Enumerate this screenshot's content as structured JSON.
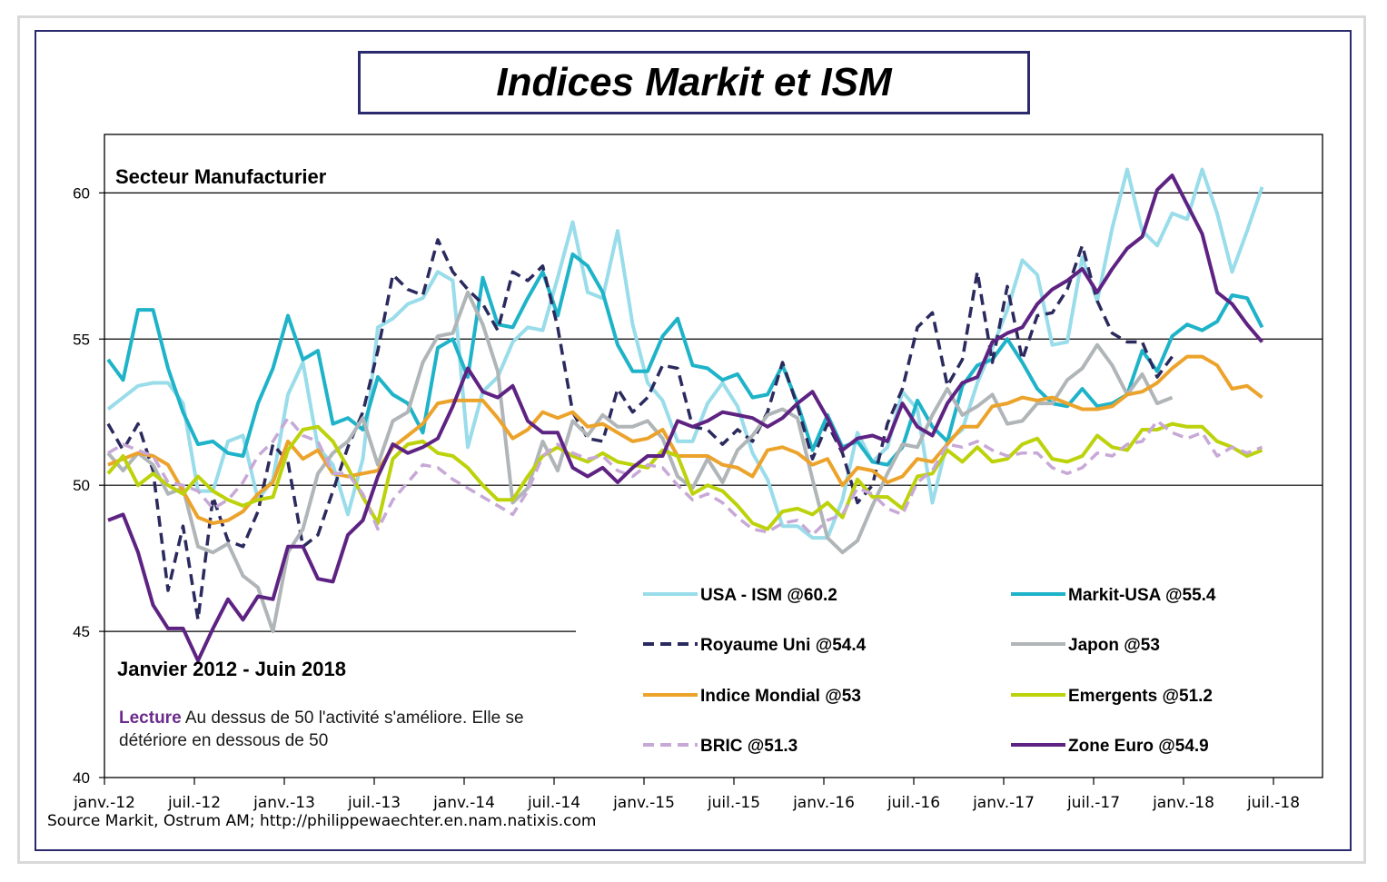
{
  "title": "Indices Markit et ISM",
  "source": "Source Markit, Ostrum AM;  http://philippewaechter.en.nam.natixis.com",
  "chart_data": {
    "type": "line",
    "subtitle": "Secteur  Manufacturier",
    "period": "Janvier 2012 - Juin 2018",
    "note": {
      "lead": "Lecture",
      "line1": " Au dessus de 50 l'activité s'améliore. Elle se",
      "line2": "détériore en dessous de 50"
    },
    "ylim": [
      40,
      62
    ],
    "y_ticks": [
      "40",
      "45",
      "50",
      "55",
      "60"
    ],
    "x_tick_labels": [
      "janv.-12",
      "juil.-12",
      "janv.-13",
      "juil.-13",
      "janv.-14",
      "juil.-14",
      "janv.-15",
      "juil.-15",
      "janv.-16",
      "juil.-16",
      "janv.-17",
      "juil.-17",
      "janv.-18",
      "juil.-18"
    ],
    "x_start": "janv.-12",
    "grid_y": [
      50,
      55,
      60
    ],
    "series": [
      {
        "name": "USA - ISM @60.2",
        "color": "#99dcea",
        "dash": "solid",
        "values": [
          52.6,
          53.0,
          53.4,
          53.5,
          53.5,
          52.8,
          49.8,
          49.8,
          51.5,
          51.7,
          49.5,
          50.2,
          53.1,
          54.2,
          51.3,
          50.7,
          49.0,
          50.9,
          55.4,
          55.7,
          56.2,
          56.4,
          57.3,
          57.0,
          51.3,
          53.2,
          53.7,
          54.9,
          55.4,
          55.3,
          57.1,
          59.0,
          56.6,
          56.4,
          58.7,
          55.5,
          53.5,
          52.9,
          51.5,
          51.5,
          52.8,
          53.5,
          52.7,
          51.1,
          50.2,
          48.6,
          48.6,
          48.2,
          48.2,
          49.5,
          51.8,
          50.8,
          51.3,
          53.2,
          52.6,
          49.4,
          51.5,
          51.9,
          53.5,
          54.7,
          56.0,
          57.7,
          57.2,
          54.8,
          54.9,
          57.8,
          56.3,
          58.8,
          60.8,
          58.7,
          58.2,
          59.3,
          59.1,
          60.8,
          59.3,
          57.3,
          58.7,
          60.2
        ]
      },
      {
        "name": "Markit-USA @55.4",
        "color": "#1eb3c8",
        "dash": "solid",
        "values": [
          54.3,
          53.6,
          56.0,
          56.0,
          54.0,
          52.5,
          51.4,
          51.5,
          51.1,
          51.0,
          52.8,
          54.0,
          55.8,
          54.3,
          54.6,
          52.1,
          52.3,
          51.9,
          53.7,
          53.1,
          52.8,
          51.8,
          54.7,
          55.0,
          53.7,
          57.1,
          55.5,
          55.4,
          56.4,
          57.3,
          55.8,
          57.9,
          57.5,
          56.6,
          54.8,
          53.9,
          53.9,
          55.1,
          55.7,
          54.1,
          54.0,
          53.6,
          53.8,
          53.0,
          53.1,
          54.1,
          52.8,
          51.2,
          52.4,
          51.3,
          51.5,
          50.8,
          50.7,
          51.3,
          52.9,
          52.0,
          51.5,
          53.4,
          54.1,
          54.3,
          55.0,
          54.2,
          53.3,
          52.8,
          52.7,
          53.3,
          52.7,
          52.8,
          53.1,
          54.6,
          53.9,
          55.1,
          55.5,
          55.3,
          55.6,
          56.5,
          56.4,
          55.4
        ]
      },
      {
        "name": "Royaume Uni @54.4",
        "color": "#2b2a5e",
        "dash": "dashed",
        "values": [
          52.1,
          51.2,
          52.1,
          50.5,
          46.4,
          48.6,
          45.4,
          49.6,
          48.1,
          47.9,
          49.1,
          51.4,
          50.8,
          47.9,
          48.3,
          49.8,
          51.3,
          52.5,
          54.6,
          57.2,
          56.7,
          56.5,
          58.4,
          57.3,
          56.7,
          56.2,
          55.3,
          57.3,
          57.0,
          57.5,
          55.4,
          52.5,
          51.6,
          51.5,
          53.3,
          52.5,
          53.0,
          54.1,
          54.0,
          52.0,
          51.9,
          51.4,
          51.9,
          51.5,
          52.5,
          54.2,
          52.7,
          50.9,
          52.1,
          51.1,
          49.4,
          50.0,
          52.1,
          53.3,
          55.4,
          55.9,
          53.4,
          54.3,
          57.3,
          54.2,
          56.8,
          54.3,
          55.8,
          55.9,
          56.7,
          58.2,
          56.3,
          55.2,
          54.9,
          54.9,
          53.7,
          54.4
        ]
      },
      {
        "name": "Japon @53",
        "color": "#b0b5b8",
        "dash": "solid",
        "values": [
          51.1,
          50.5,
          51.1,
          50.7,
          49.7,
          49.9,
          47.9,
          47.7,
          48.0,
          46.9,
          46.5,
          45.0,
          47.7,
          48.5,
          50.4,
          51.1,
          51.5,
          52.3,
          50.7,
          52.2,
          52.5,
          54.2,
          55.1,
          55.2,
          56.6,
          55.5,
          53.9,
          49.4,
          49.9,
          51.5,
          50.5,
          52.2,
          51.7,
          52.4,
          52.0,
          52.0,
          52.2,
          51.6,
          50.3,
          49.9,
          50.9,
          50.1,
          51.2,
          51.7,
          52.4,
          52.6,
          52.3,
          50.2,
          48.2,
          47.7,
          48.1,
          49.3,
          50.4,
          51.4,
          51.3,
          52.4,
          53.3,
          52.4,
          52.7,
          53.1,
          52.1,
          52.2,
          52.8,
          52.8,
          53.6,
          54.0,
          54.8,
          54.1,
          53.1,
          53.8,
          52.8,
          53.0
        ]
      },
      {
        "name": "Indice Mondial @53",
        "color": "#eca32b",
        "dash": "solid",
        "values": [
          50.7,
          50.9,
          51.1,
          51.0,
          50.7,
          49.8,
          48.9,
          48.7,
          48.8,
          49.1,
          49.7,
          50.1,
          51.5,
          50.9,
          51.2,
          50.4,
          50.3,
          50.4,
          50.5,
          51.3,
          51.7,
          52.1,
          52.8,
          52.9,
          52.9,
          52.9,
          52.3,
          51.6,
          51.9,
          52.5,
          52.3,
          52.5,
          52.0,
          52.1,
          51.8,
          51.5,
          51.6,
          51.9,
          51.0,
          51.0,
          51.0,
          50.7,
          50.6,
          50.3,
          51.2,
          51.3,
          51.1,
          50.7,
          50.9,
          50.0,
          50.6,
          50.5,
          50.1,
          50.3,
          50.9,
          50.8,
          51.4,
          52.0,
          52.0,
          52.7,
          52.8,
          53.0,
          52.9,
          53.0,
          52.8,
          52.6,
          52.6,
          52.7,
          53.1,
          53.2,
          53.5,
          54.0,
          54.4,
          54.4,
          54.1,
          53.3,
          53.4,
          53.0
        ]
      },
      {
        "name": "Emergents @51.2",
        "color": "#bcd20a",
        "dash": "solid",
        "values": [
          50.4,
          51.0,
          50.0,
          50.4,
          50.0,
          49.7,
          50.3,
          49.8,
          49.5,
          49.3,
          49.5,
          49.6,
          51.2,
          51.9,
          52.0,
          51.5,
          50.6,
          49.6,
          48.7,
          50.9,
          51.4,
          51.5,
          51.1,
          51.0,
          50.6,
          50.0,
          49.5,
          49.5,
          50.3,
          51.0,
          51.3,
          51.0,
          50.8,
          51.1,
          50.8,
          50.7,
          50.6,
          51.2,
          51.0,
          49.7,
          50.0,
          49.8,
          49.3,
          48.7,
          48.5,
          49.1,
          49.2,
          49.0,
          49.4,
          48.9,
          50.2,
          49.6,
          49.6,
          49.2,
          50.3,
          50.4,
          51.2,
          50.8,
          51.3,
          50.8,
          50.9,
          51.4,
          51.6,
          50.9,
          50.8,
          51.0,
          51.7,
          51.3,
          51.2,
          51.9,
          51.9,
          52.1,
          52.0,
          52.0,
          51.5,
          51.3,
          51.0,
          51.2
        ]
      },
      {
        "name": "BRIC @51.3",
        "color": "#c7a8d6",
        "dash": "dashed",
        "values": [
          51.1,
          51.4,
          51.2,
          51.0,
          50.1,
          50.0,
          49.8,
          49.2,
          49.5,
          50.1,
          51.0,
          51.5,
          52.3,
          51.7,
          51.5,
          50.4,
          50.4,
          49.7,
          48.5,
          49.5,
          50.1,
          50.7,
          50.6,
          50.2,
          49.9,
          49.6,
          49.3,
          49.0,
          49.8,
          51.0,
          51.4,
          51.1,
          50.9,
          51.0,
          50.5,
          50.3,
          50.7,
          50.6,
          50.0,
          49.5,
          49.7,
          49.4,
          48.9,
          48.5,
          48.4,
          48.7,
          48.8,
          48.3,
          48.8,
          49.0,
          49.9,
          49.7,
          49.2,
          49.0,
          50.1,
          50.5,
          51.4,
          51.3,
          51.5,
          51.2,
          51.0,
          51.1,
          51.1,
          50.6,
          50.4,
          50.6,
          51.1,
          51.0,
          51.4,
          51.5,
          52.2,
          51.8,
          51.6,
          51.8,
          51.0,
          51.3,
          51.1,
          51.3
        ]
      },
      {
        "name": "Zone Euro @54.9",
        "color": "#5e2382",
        "dash": "solid",
        "values": [
          48.8,
          49.0,
          47.7,
          45.9,
          45.1,
          45.1,
          44.0,
          45.1,
          46.1,
          45.4,
          46.2,
          46.1,
          47.9,
          47.9,
          46.8,
          46.7,
          48.3,
          48.8,
          50.3,
          51.4,
          51.1,
          51.3,
          51.6,
          52.7,
          54.0,
          53.2,
          53.0,
          53.4,
          52.2,
          51.8,
          51.8,
          50.6,
          50.3,
          50.6,
          50.1,
          50.6,
          51.0,
          51.0,
          52.2,
          52.0,
          52.2,
          52.5,
          52.4,
          52.3,
          52.0,
          52.3,
          52.8,
          53.2,
          52.3,
          51.2,
          51.6,
          51.7,
          51.5,
          52.8,
          52.0,
          51.7,
          52.8,
          53.5,
          53.7,
          54.9,
          55.2,
          55.4,
          56.2,
          56.7,
          57.0,
          57.4,
          56.6,
          57.4,
          58.1,
          58.5,
          60.1,
          60.6,
          59.6,
          58.6,
          56.6,
          56.2,
          55.5,
          54.9
        ]
      }
    ],
    "legend": [
      [
        "USA - ISM @60.2",
        "Markit-USA @55.4"
      ],
      [
        "Royaume Uni @54.4",
        "Japon @53"
      ],
      [
        "Indice Mondial @53",
        "Emergents @51.2"
      ],
      [
        "BRIC @51.3",
        "Zone Euro @54.9"
      ]
    ]
  }
}
